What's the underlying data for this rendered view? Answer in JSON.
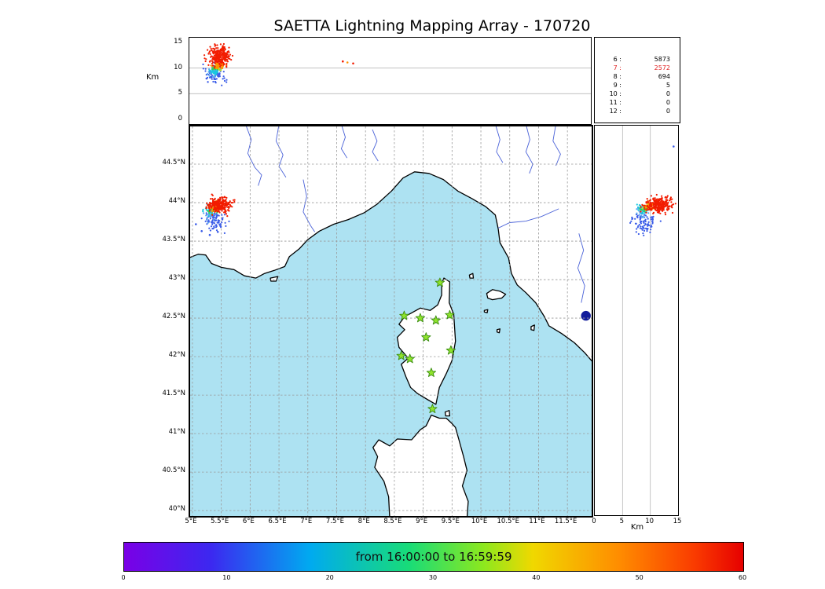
{
  "title": "SAETTA Lightning Mapping Array - 170720",
  "axes": {
    "alt_label": "Km",
    "alt_ticks": [
      {
        "label": "0",
        "value": 0
      },
      {
        "label": "5",
        "value": 5
      },
      {
        "label": "10",
        "value": 10
      },
      {
        "label": "15",
        "value": 15
      }
    ],
    "lat_ticks": [
      {
        "label": "44.5°N",
        "value": 44.5
      },
      {
        "label": "44°N",
        "value": 44
      },
      {
        "label": "43.5°N",
        "value": 43.5
      },
      {
        "label": "43°N",
        "value": 43
      },
      {
        "label": "42.5°N",
        "value": 42.5
      },
      {
        "label": "42°N",
        "value": 42
      },
      {
        "label": "41.5°N",
        "value": 41.5
      },
      {
        "label": "41°N",
        "value": 41
      },
      {
        "label": "40.5°N",
        "value": 40.5
      },
      {
        "label": "40°N",
        "value": 40
      }
    ],
    "lon_ticks": [
      {
        "label": "5°E",
        "value": 5
      },
      {
        "label": "5.5°E",
        "value": 5.5
      },
      {
        "label": "6°E",
        "value": 6
      },
      {
        "label": "6.5°E",
        "value": 6.5
      },
      {
        "label": "7°E",
        "value": 7
      },
      {
        "label": "7.5°E",
        "value": 7.5
      },
      {
        "label": "8°E",
        "value": 8
      },
      {
        "label": "8.5°E",
        "value": 8.5
      },
      {
        "label": "9°E",
        "value": 9
      },
      {
        "label": "9.5°E",
        "value": 9.5
      },
      {
        "label": "10°E",
        "value": 10
      },
      {
        "label": "10.5°E",
        "value": 10.5
      },
      {
        "label": "11°E",
        "value": 11
      },
      {
        "label": "11.5°E",
        "value": 11.5
      }
    ]
  },
  "map_style": {
    "sea_color": "#ade2f2",
    "land_color": "#ffffff",
    "coast_color": "#000000",
    "river_color": "#4a62d8",
    "grid_color": "#999999",
    "station_color": "#8fe32c",
    "station_edge": "#3b8d12",
    "lake_color": "#111b9b"
  },
  "chart_data": [
    {
      "type": "scatter",
      "name": "altitude_vs_longitude",
      "ylabel": "Km",
      "xlim": [
        4.96,
        11.92
      ],
      "ylim": [
        0,
        15
      ],
      "yticks": [
        0,
        5,
        10,
        15
      ],
      "grid_y": [
        5,
        10
      ],
      "clusters": [
        {
          "color": "#3a5ce8",
          "n": 85,
          "x": 5.42,
          "sx": 0.085,
          "y": 8.7,
          "sy": 0.85
        },
        {
          "color": "#58aaf0",
          "n": 25,
          "x": 5.37,
          "sx": 0.06,
          "y": 9.2,
          "sy": 0.5
        },
        {
          "color": "#18c8e0",
          "n": 30,
          "x": 5.39,
          "sx": 0.05,
          "y": 9.5,
          "sy": 0.35
        },
        {
          "color": "#38cc50",
          "n": 25,
          "x": 5.42,
          "sx": 0.05,
          "y": 9.9,
          "sy": 0.3
        },
        {
          "color": "#c8e020",
          "n": 18,
          "x": 5.45,
          "sx": 0.04,
          "y": 10.2,
          "sy": 0.25
        },
        {
          "color": "#ff9400",
          "n": 45,
          "x": 5.47,
          "sx": 0.05,
          "y": 10.6,
          "sy": 0.35
        },
        {
          "color": "#f21c00",
          "n": 280,
          "x": 5.49,
          "sx": 0.085,
          "y": 12.3,
          "sy": 1.05
        }
      ],
      "extra_points": [
        {
          "x": 7.62,
          "y": 11.3,
          "color": "#f21c00"
        },
        {
          "x": 7.8,
          "y": 10.9,
          "color": "#f21c00"
        },
        {
          "x": 7.7,
          "y": 11.1,
          "color": "#ff9400"
        }
      ]
    },
    {
      "type": "scatter",
      "name": "plan_view_map",
      "xlim": [
        4.96,
        11.92
      ],
      "ylim": [
        39.93,
        44.99
      ],
      "stations": [
        [
          9.29,
          42.96
        ],
        [
          8.67,
          42.53
        ],
        [
          8.95,
          42.5
        ],
        [
          9.22,
          42.47
        ],
        [
          9.46,
          42.54
        ],
        [
          9.05,
          42.25
        ],
        [
          8.62,
          42.01
        ],
        [
          8.77,
          41.97
        ],
        [
          9.48,
          42.08
        ],
        [
          9.14,
          41.79
        ],
        [
          9.16,
          41.32
        ]
      ],
      "lake": {
        "lon": 11.82,
        "lat": 42.53
      },
      "clusters": [
        {
          "color": "#3a5ce8",
          "n": 85,
          "x": 5.4,
          "sx": 0.09,
          "y": 43.79,
          "sy": 0.075
        },
        {
          "color": "#58aaf0",
          "n": 25,
          "x": 5.33,
          "sx": 0.05,
          "y": 43.86,
          "sy": 0.04
        },
        {
          "color": "#18c8e0",
          "n": 30,
          "x": 5.31,
          "sx": 0.045,
          "y": 43.89,
          "sy": 0.03
        },
        {
          "color": "#38cc50",
          "n": 25,
          "x": 5.34,
          "sx": 0.045,
          "y": 43.91,
          "sy": 0.025
        },
        {
          "color": "#c8e020",
          "n": 18,
          "x": 5.37,
          "sx": 0.04,
          "y": 43.92,
          "sy": 0.02
        },
        {
          "color": "#ff9400",
          "n": 45,
          "x": 5.41,
          "sx": 0.05,
          "y": 43.94,
          "sy": 0.028
        },
        {
          "color": "#f21c00",
          "n": 280,
          "x": 5.47,
          "sx": 0.1,
          "y": 43.97,
          "sy": 0.048
        }
      ],
      "extra_points": [
        {
          "x": 5.16,
          "y": 43.63,
          "color": "#3a5ce8"
        },
        {
          "x": 5.3,
          "y": 43.58,
          "color": "#3a5ce8"
        },
        {
          "x": 5.44,
          "y": 43.62,
          "color": "#3a5ce8"
        },
        {
          "x": 5.06,
          "y": 43.72,
          "color": "#3a5ce8"
        }
      ]
    },
    {
      "type": "scatter",
      "name": "latitude_vs_altitude",
      "xlabel": "Km",
      "xlim": [
        0,
        15
      ],
      "ylim": [
        39.93,
        44.99
      ],
      "xticks": [
        0,
        5,
        10,
        15
      ],
      "grid_x": [
        5,
        10
      ],
      "clusters": [
        {
          "color": "#3a5ce8",
          "n": 85,
          "x": 8.9,
          "sx": 1.0,
          "y": 43.74,
          "sy": 0.075
        },
        {
          "color": "#58aaf0",
          "n": 25,
          "x": 8.4,
          "sx": 0.5,
          "y": 43.87,
          "sy": 0.04
        },
        {
          "color": "#18c8e0",
          "n": 30,
          "x": 8.5,
          "sx": 0.45,
          "y": 43.9,
          "sy": 0.03
        },
        {
          "color": "#38cc50",
          "n": 25,
          "x": 8.9,
          "sx": 0.4,
          "y": 43.92,
          "sy": 0.025
        },
        {
          "color": "#c8e020",
          "n": 18,
          "x": 9.3,
          "sx": 0.3,
          "y": 43.93,
          "sy": 0.02
        },
        {
          "color": "#ff9400",
          "n": 45,
          "x": 9.8,
          "sx": 0.5,
          "y": 43.94,
          "sy": 0.028
        },
        {
          "color": "#f21c00",
          "n": 280,
          "x": 11.6,
          "sx": 1.25,
          "y": 43.96,
          "sy": 0.048
        }
      ],
      "extra_points": [
        {
          "x": 14.2,
          "y": 44.72,
          "color": "#3a5ce8"
        }
      ]
    },
    {
      "type": "table",
      "name": "sources_per_station",
      "rows": [
        {
          "station": "6",
          "count": "5873",
          "color": "#000000"
        },
        {
          "station": "7",
          "count": "2572",
          "color": "#e02424"
        },
        {
          "station": "8",
          "count": "694",
          "color": "#000000"
        },
        {
          "station": "9",
          "count": "5",
          "color": "#000000"
        },
        {
          "station": "10",
          "count": "0",
          "color": "#000000"
        },
        {
          "station": "11",
          "count": "0",
          "color": "#000000"
        },
        {
          "station": "12",
          "count": "0",
          "color": "#000000"
        }
      ]
    },
    {
      "type": "colorbar",
      "name": "time_colorbar",
      "title": "from 16:00:00 to 16:59:59",
      "range": [
        0,
        60
      ],
      "ticks": [
        0,
        10,
        20,
        30,
        40,
        50,
        60
      ],
      "stops": [
        {
          "pos": 0,
          "color": "#7a00e6"
        },
        {
          "pos": 0.14,
          "color": "#3c28f0"
        },
        {
          "pos": 0.3,
          "color": "#00aaf0"
        },
        {
          "pos": 0.46,
          "color": "#18dc78"
        },
        {
          "pos": 0.58,
          "color": "#8ce81e"
        },
        {
          "pos": 0.66,
          "color": "#f0d800"
        },
        {
          "pos": 0.8,
          "color": "#ff8c00"
        },
        {
          "pos": 0.92,
          "color": "#fa3c00"
        },
        {
          "pos": 1,
          "color": "#e60000"
        }
      ]
    }
  ],
  "geo": {
    "mainland": [
      [
        4.93,
        43.28
      ],
      [
        5.1,
        43.33
      ],
      [
        5.23,
        43.32
      ],
      [
        5.33,
        43.21
      ],
      [
        5.5,
        43.16
      ],
      [
        5.72,
        43.13
      ],
      [
        5.9,
        43.05
      ],
      [
        6.1,
        43.02
      ],
      [
        6.25,
        43.08
      ],
      [
        6.42,
        43.12
      ],
      [
        6.6,
        43.17
      ],
      [
        6.68,
        43.3
      ],
      [
        6.85,
        43.4
      ],
      [
        7.0,
        43.52
      ],
      [
        7.2,
        43.63
      ],
      [
        7.45,
        43.72
      ],
      [
        7.7,
        43.78
      ],
      [
        7.98,
        43.87
      ],
      [
        8.2,
        43.98
      ],
      [
        8.45,
        44.15
      ],
      [
        8.65,
        44.32
      ],
      [
        8.85,
        44.4
      ],
      [
        9.1,
        44.38
      ],
      [
        9.35,
        44.3
      ],
      [
        9.6,
        44.15
      ],
      [
        9.85,
        44.05
      ],
      [
        10.08,
        43.95
      ],
      [
        10.25,
        43.84
      ],
      [
        10.3,
        43.66
      ],
      [
        10.33,
        43.48
      ],
      [
        10.48,
        43.28
      ],
      [
        10.53,
        43.08
      ],
      [
        10.63,
        42.93
      ],
      [
        10.78,
        42.83
      ],
      [
        10.95,
        42.7
      ],
      [
        11.1,
        42.52
      ],
      [
        11.18,
        42.4
      ],
      [
        11.4,
        42.3
      ],
      [
        11.62,
        42.18
      ],
      [
        11.8,
        42.05
      ],
      [
        11.95,
        41.92
      ],
      [
        11.95,
        45.02
      ],
      [
        4.93,
        45.02
      ]
    ],
    "corsica": [
      [
        9.36,
        43.02
      ],
      [
        9.46,
        42.97
      ],
      [
        9.45,
        42.7
      ],
      [
        9.53,
        42.55
      ],
      [
        9.56,
        42.2
      ],
      [
        9.5,
        41.95
      ],
      [
        9.4,
        41.78
      ],
      [
        9.28,
        41.6
      ],
      [
        9.22,
        41.38
      ],
      [
        9.08,
        41.44
      ],
      [
        8.9,
        41.52
      ],
      [
        8.78,
        41.6
      ],
      [
        8.7,
        41.74
      ],
      [
        8.62,
        41.9
      ],
      [
        8.74,
        41.98
      ],
      [
        8.58,
        42.12
      ],
      [
        8.55,
        42.25
      ],
      [
        8.68,
        42.35
      ],
      [
        8.58,
        42.42
      ],
      [
        8.68,
        42.52
      ],
      [
        8.78,
        42.56
      ],
      [
        8.95,
        42.63
      ],
      [
        9.12,
        42.6
      ],
      [
        9.25,
        42.67
      ],
      [
        9.32,
        42.8
      ],
      [
        9.32,
        42.95
      ]
    ],
    "sardinia": [
      [
        8.42,
        39.9
      ],
      [
        8.4,
        40.18
      ],
      [
        8.32,
        40.38
      ],
      [
        8.16,
        40.56
      ],
      [
        8.21,
        40.7
      ],
      [
        8.13,
        40.82
      ],
      [
        8.23,
        40.92
      ],
      [
        8.42,
        40.84
      ],
      [
        8.55,
        40.93
      ],
      [
        8.8,
        40.92
      ],
      [
        8.95,
        41.05
      ],
      [
        9.05,
        41.1
      ],
      [
        9.14,
        41.24
      ],
      [
        9.28,
        41.2
      ],
      [
        9.4,
        41.2
      ],
      [
        9.5,
        41.13
      ],
      [
        9.56,
        41.08
      ],
      [
        9.62,
        40.92
      ],
      [
        9.7,
        40.7
      ],
      [
        9.76,
        40.52
      ],
      [
        9.68,
        40.32
      ],
      [
        9.78,
        40.12
      ],
      [
        9.76,
        39.9
      ]
    ],
    "islands": [
      [
        [
          10.1,
          42.82
        ],
        [
          10.2,
          42.87
        ],
        [
          10.33,
          42.85
        ],
        [
          10.43,
          42.81
        ],
        [
          10.36,
          42.76
        ],
        [
          10.2,
          42.74
        ],
        [
          10.12,
          42.76
        ]
      ],
      [
        [
          9.8,
          43.06
        ],
        [
          9.86,
          43.08
        ],
        [
          9.87,
          43.02
        ],
        [
          9.81,
          43.02
        ]
      ],
      [
        [
          10.06,
          42.6
        ],
        [
          10.12,
          42.61
        ],
        [
          10.11,
          42.57
        ],
        [
          10.06,
          42.58
        ]
      ],
      [
        [
          10.28,
          42.35
        ],
        [
          10.33,
          42.36
        ],
        [
          10.32,
          42.31
        ],
        [
          10.28,
          42.32
        ]
      ],
      [
        [
          10.87,
          42.39
        ],
        [
          10.93,
          42.41
        ],
        [
          10.92,
          42.34
        ],
        [
          10.87,
          42.35
        ]
      ],
      [
        [
          6.35,
          43.02
        ],
        [
          6.48,
          43.04
        ],
        [
          6.45,
          42.98
        ],
        [
          6.36,
          42.98
        ]
      ],
      [
        [
          9.38,
          41.28
        ],
        [
          9.45,
          41.3
        ],
        [
          9.46,
          41.23
        ],
        [
          9.39,
          41.23
        ]
      ]
    ],
    "rivers": [
      [
        [
          5.92,
          45.02
        ],
        [
          6.02,
          44.82
        ],
        [
          5.96,
          44.64
        ],
        [
          6.08,
          44.46
        ],
        [
          6.2,
          44.36
        ],
        [
          6.14,
          44.22
        ]
      ],
      [
        [
          6.5,
          45.02
        ],
        [
          6.45,
          44.8
        ],
        [
          6.57,
          44.62
        ],
        [
          6.5,
          44.47
        ],
        [
          6.62,
          44.33
        ]
      ],
      [
        [
          6.92,
          44.3
        ],
        [
          6.98,
          44.08
        ],
        [
          6.92,
          43.88
        ],
        [
          7.05,
          43.7
        ],
        [
          7.12,
          43.62
        ]
      ],
      [
        [
          7.58,
          45.02
        ],
        [
          7.65,
          44.85
        ],
        [
          7.58,
          44.7
        ],
        [
          7.68,
          44.58
        ]
      ],
      [
        [
          8.12,
          44.95
        ],
        [
          8.2,
          44.8
        ],
        [
          8.12,
          44.66
        ],
        [
          8.22,
          44.54
        ]
      ],
      [
        [
          10.25,
          45.02
        ],
        [
          10.33,
          44.82
        ],
        [
          10.27,
          44.66
        ],
        [
          10.38,
          44.52
        ]
      ],
      [
        [
          10.78,
          45.02
        ],
        [
          10.85,
          44.82
        ],
        [
          10.78,
          44.66
        ],
        [
          10.9,
          44.5
        ],
        [
          10.84,
          44.38
        ]
      ],
      [
        [
          11.3,
          45.02
        ],
        [
          11.25,
          44.8
        ],
        [
          11.38,
          44.63
        ],
        [
          11.3,
          44.48
        ]
      ],
      [
        [
          11.35,
          43.92
        ],
        [
          11.05,
          43.82
        ],
        [
          10.78,
          43.76
        ],
        [
          10.5,
          43.74
        ],
        [
          10.3,
          43.67
        ]
      ],
      [
        [
          11.7,
          43.6
        ],
        [
          11.78,
          43.38
        ],
        [
          11.68,
          43.15
        ],
        [
          11.8,
          42.92
        ],
        [
          11.74,
          42.7
        ]
      ]
    ]
  }
}
